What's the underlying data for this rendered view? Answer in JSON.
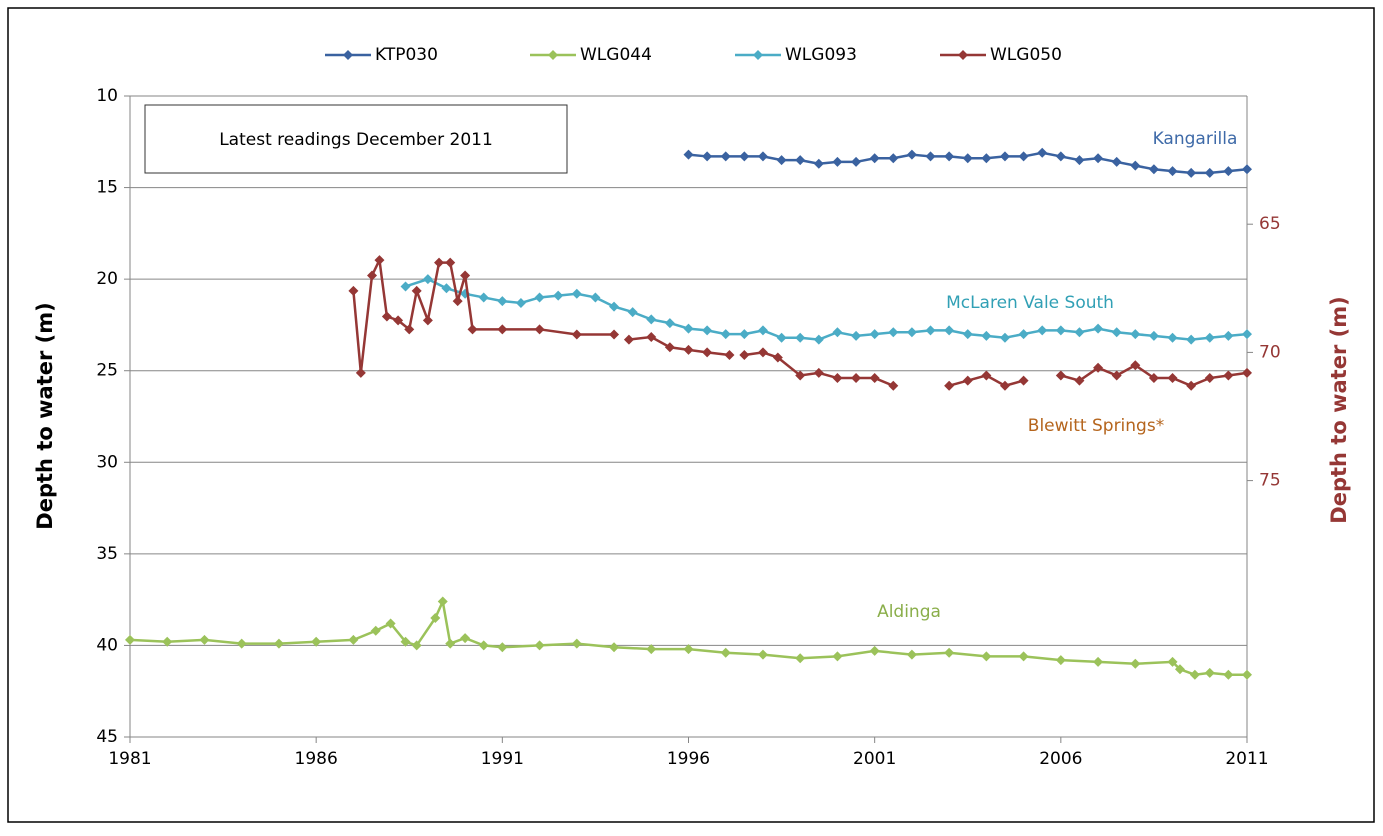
{
  "chart_data": {
    "type": "line",
    "legend": "top",
    "yinvert": true,
    "grid": true,
    "xlim": [
      1981,
      2011
    ],
    "xticks": [
      1981,
      1986,
      1991,
      1996,
      2001,
      2006,
      2011
    ],
    "ylim": [
      10,
      45
    ],
    "yticks": [
      10,
      15,
      20,
      25,
      30,
      35,
      40,
      45
    ],
    "y2lim": [
      60,
      85
    ],
    "y2ticks": [
      65,
      70,
      75
    ],
    "ylabel": "Depth to water (m)",
    "y2label": "Depth to water  (m)",
    "textbox": "Latest readings December 2011",
    "annotations": [
      {
        "text": "Kangarilla",
        "color": "#3e6aa8"
      },
      {
        "text": "McLaren Vale South",
        "color": "#31a0b5"
      },
      {
        "text": "Blewitt Springs*",
        "color": "#b5651d"
      },
      {
        "text": "Aldinga",
        "color": "#8aae4a"
      }
    ],
    "series": [
      {
        "name": "KTP030",
        "color": "#3a62a0",
        "x": [
          1996,
          1996.5,
          1997,
          1997.5,
          1998,
          1998.5,
          1999,
          1999.5,
          2000,
          2000.5,
          2001,
          2001.5,
          2002,
          2002.5,
          2003,
          2003.5,
          2004,
          2004.5,
          2005,
          2005.5,
          2006,
          2006.5,
          2007,
          2007.5,
          2008,
          2008.5,
          2009,
          2009.5,
          2010,
          2010.5,
          2011
        ],
        "values": [
          13.2,
          13.3,
          13.3,
          13.3,
          13.3,
          13.5,
          13.5,
          13.7,
          13.6,
          13.6,
          13.4,
          13.4,
          13.2,
          13.3,
          13.3,
          13.4,
          13.4,
          13.3,
          13.3,
          13.1,
          13.3,
          13.5,
          13.4,
          13.6,
          13.8,
          14.0,
          14.1,
          14.2,
          14.2,
          14.1,
          14.0
        ]
      },
      {
        "name": "WLG044",
        "color": "#9bc25a",
        "x": [
          1981,
          1982,
          1983,
          1984,
          1985,
          1986,
          1987,
          1987.6,
          1988,
          1988.4,
          1988.7,
          1989.2,
          1989.4,
          1989.6,
          1990,
          1990.5,
          1991,
          1992,
          1993,
          1994,
          1995,
          1996,
          1997,
          1998,
          1999,
          2000,
          2001,
          2002,
          2003,
          2004,
          2005,
          2006,
          2007,
          2008,
          2009,
          2009.2,
          2009.6,
          2010,
          2010.5,
          2011
        ],
        "values": [
          39.7,
          39.8,
          39.7,
          39.9,
          39.9,
          39.8,
          39.7,
          39.2,
          38.8,
          39.8,
          40.0,
          38.5,
          37.6,
          39.9,
          39.6,
          40.0,
          40.1,
          40.0,
          39.9,
          40.1,
          40.2,
          40.2,
          40.4,
          40.5,
          40.7,
          40.6,
          40.3,
          40.5,
          40.4,
          40.6,
          40.6,
          40.8,
          40.9,
          41.0,
          40.9,
          41.3,
          41.6,
          41.5,
          41.6,
          41.6
        ]
      },
      {
        "name": "WLG093",
        "color": "#4bacc6",
        "x": [
          1988.4,
          1989,
          1989.5,
          1990,
          1990.5,
          1991,
          1991.5,
          1992,
          1992.5,
          1993,
          1993.5,
          1994,
          1994.5,
          1995,
          1995.5,
          1996,
          1996.5,
          1997,
          1997.5,
          1998,
          1998.5,
          1999,
          1999.5,
          2000,
          2000.5,
          2001,
          2001.5,
          2002,
          2002.5,
          2003,
          2003.5,
          2004,
          2004.5,
          2005,
          2005.5,
          2006,
          2006.5,
          2007,
          2007.5,
          2008,
          2008.5,
          2009,
          2009.5,
          2010,
          2010.5,
          2011
        ],
        "values": [
          20.4,
          20.0,
          20.5,
          20.8,
          21.0,
          21.2,
          21.3,
          21.0,
          20.9,
          20.8,
          21.0,
          21.5,
          21.8,
          22.2,
          22.4,
          22.7,
          22.8,
          23.0,
          23.0,
          22.8,
          23.2,
          23.2,
          23.3,
          22.9,
          23.1,
          23.0,
          22.9,
          22.9,
          22.8,
          22.8,
          23.0,
          23.1,
          23.2,
          23.0,
          22.8,
          22.8,
          22.9,
          22.7,
          22.9,
          23.0,
          23.1,
          23.2,
          23.3,
          23.2,
          23.1,
          23.0
        ]
      },
      {
        "name": "WLG050",
        "color": "#953735",
        "axis": "y2",
        "x": [
          1987,
          1987.2,
          1987.5,
          1987.7,
          1987.9,
          1988.2,
          1988.5,
          1988.7,
          1989,
          1989.3,
          1989.6,
          1989.8,
          1990,
          1990.2,
          1991,
          1992,
          1993,
          1994,
          1994.2,
          1994.4,
          1995,
          1995.5,
          1996,
          1996.5,
          1997.1,
          1997.3,
          1997.5,
          1998,
          1998.4,
          1999,
          1999.5,
          2000,
          2000.5,
          2001,
          2001.5,
          2002.3,
          2003,
          2003.5,
          2004,
          2004.5,
          2005,
          2005.5,
          2006,
          2006.5,
          2007,
          2007.5,
          2008,
          2008.5,
          2009,
          2009.5,
          2010,
          2010.5,
          2011
        ],
        "values": [
          67.6,
          70.8,
          67.0,
          66.4,
          68.6,
          68.75,
          69.1,
          67.6,
          68.75,
          66.5,
          66.5,
          68.0,
          67.0,
          69.1,
          69.1,
          69.1,
          69.3,
          69.3,
          null,
          69.5,
          69.4,
          69.8,
          69.9,
          70.0,
          70.1,
          null,
          70.1,
          70.0,
          70.2,
          70.9,
          70.8,
          71.0,
          71.0,
          71.0,
          71.3,
          null,
          71.3,
          71.1,
          70.9,
          71.3,
          71.1,
          null,
          70.9,
          71.1,
          70.6,
          70.9,
          70.5,
          71.0,
          71.0,
          71.3,
          71.0,
          70.9,
          70.8
        ]
      }
    ]
  }
}
